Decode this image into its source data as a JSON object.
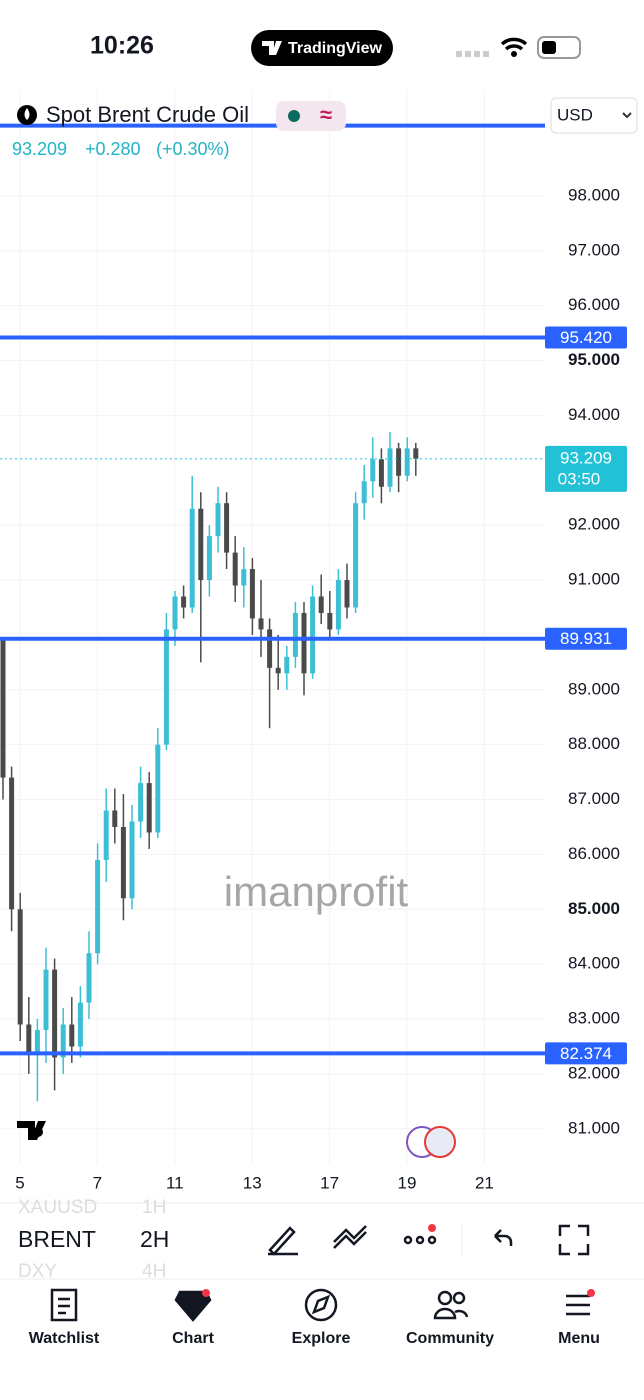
{
  "status_bar": {
    "time": "10:26",
    "app": "TradingView"
  },
  "header": {
    "symbol": "Spot Brent Crude Oil",
    "price": "93.209",
    "change": "+0.280",
    "change_pct": "(+0.30%)",
    "currency": "USD"
  },
  "chart_data": {
    "type": "candlestick",
    "watermark": "imanprofit",
    "open": [
      89.9,
      87.4,
      85.0,
      82.9,
      82.4,
      82.8,
      83.9,
      82.3,
      82.9,
      82.5,
      83.3,
      84.2,
      85.9,
      86.8,
      86.5,
      85.2,
      86.6,
      87.3,
      86.4,
      88.0,
      90.1,
      90.7,
      90.5,
      92.3,
      91.0,
      91.8,
      92.4,
      91.5,
      90.9,
      91.2,
      90.3,
      90.1,
      89.4,
      89.3,
      89.6,
      90.4,
      89.3,
      90.7,
      90.4,
      90.1,
      91.0,
      90.5,
      92.4,
      92.8,
      93.2,
      92.7,
      93.4,
      92.9,
      93.4
    ],
    "high": [
      89.95,
      87.6,
      85.3,
      83.4,
      83.0,
      84.3,
      84.1,
      83.2,
      83.4,
      83.6,
      84.6,
      86.2,
      87.2,
      87.2,
      87.1,
      86.9,
      87.6,
      87.5,
      88.3,
      90.4,
      90.8,
      90.9,
      92.9,
      92.6,
      92.0,
      92.7,
      92.6,
      91.8,
      91.6,
      91.4,
      91.0,
      90.3,
      90.0,
      89.8,
      90.6,
      90.6,
      90.9,
      91.1,
      90.8,
      91.2,
      91.3,
      92.6,
      93.1,
      93.6,
      93.4,
      93.7,
      93.5,
      93.6,
      93.5
    ],
    "low": [
      87.0,
      84.6,
      82.6,
      82.0,
      81.5,
      82.2,
      81.7,
      82.0,
      82.2,
      82.3,
      83.0,
      84.0,
      85.5,
      86.2,
      84.8,
      85.0,
      86.3,
      86.1,
      86.3,
      87.9,
      89.8,
      90.3,
      90.4,
      89.5,
      90.7,
      91.5,
      91.2,
      90.6,
      90.5,
      90.0,
      89.6,
      88.3,
      89.0,
      89.0,
      89.4,
      88.9,
      89.2,
      90.2,
      89.9,
      90.0,
      90.3,
      90.4,
      92.1,
      92.5,
      92.4,
      92.6,
      92.6,
      92.8,
      92.9
    ],
    "close": [
      87.4,
      85.0,
      82.9,
      82.4,
      82.8,
      83.9,
      82.3,
      82.9,
      82.5,
      83.3,
      84.2,
      85.9,
      86.8,
      86.5,
      85.2,
      86.6,
      87.3,
      86.4,
      88.0,
      90.1,
      90.7,
      90.5,
      92.3,
      91.0,
      91.8,
      92.4,
      91.5,
      90.9,
      91.2,
      90.3,
      90.1,
      89.4,
      89.3,
      89.6,
      90.4,
      89.3,
      90.7,
      90.4,
      90.1,
      91.0,
      90.5,
      92.4,
      92.8,
      93.2,
      92.7,
      93.4,
      92.9,
      93.4,
      93.209
    ],
    "up_color": "#3cbfd4",
    "down_color": "#4a4a4a",
    "ylim": [
      80.34,
      99.93
    ],
    "yticks": [
      {
        "value": 81,
        "label": "81.000"
      },
      {
        "value": 82,
        "label": "82.000"
      },
      {
        "value": 83,
        "label": "83.000"
      },
      {
        "value": 84,
        "label": "84.000"
      },
      {
        "value": 85,
        "label": "85.000"
      },
      {
        "value": 86,
        "label": "86.000"
      },
      {
        "value": 87,
        "label": "87.000"
      },
      {
        "value": 88,
        "label": "88.000"
      },
      {
        "value": 89,
        "label": "89.000"
      },
      {
        "value": 91,
        "label": "91.000"
      },
      {
        "value": 92,
        "label": "92.000"
      },
      {
        "value": 94,
        "label": "94.000"
      },
      {
        "value": 95,
        "label": "95.000"
      },
      {
        "value": 96,
        "label": "96.000"
      },
      {
        "value": 97,
        "label": "97.000"
      },
      {
        "value": 98,
        "label": "98.000"
      }
    ],
    "xticks": [
      5,
      7,
      11,
      13,
      17,
      19,
      21
    ],
    "grid": true,
    "levels": [
      99.28,
      95.42,
      89.931,
      82.374
    ],
    "level_labels": [
      null,
      "95.420",
      "89.931",
      "82.374"
    ],
    "level_color": "#2962ff",
    "last_price": 93.209,
    "countdown": "03:50",
    "last_color": "#22c1d6"
  },
  "toolbar": {
    "symbols": [
      "XAUUSD",
      "BRENT",
      "DXY"
    ],
    "intervals": [
      "1H",
      "2H",
      "4H"
    ]
  },
  "nav": [
    "Watchlist",
    "Chart",
    "Explore",
    "Community",
    "Menu"
  ]
}
